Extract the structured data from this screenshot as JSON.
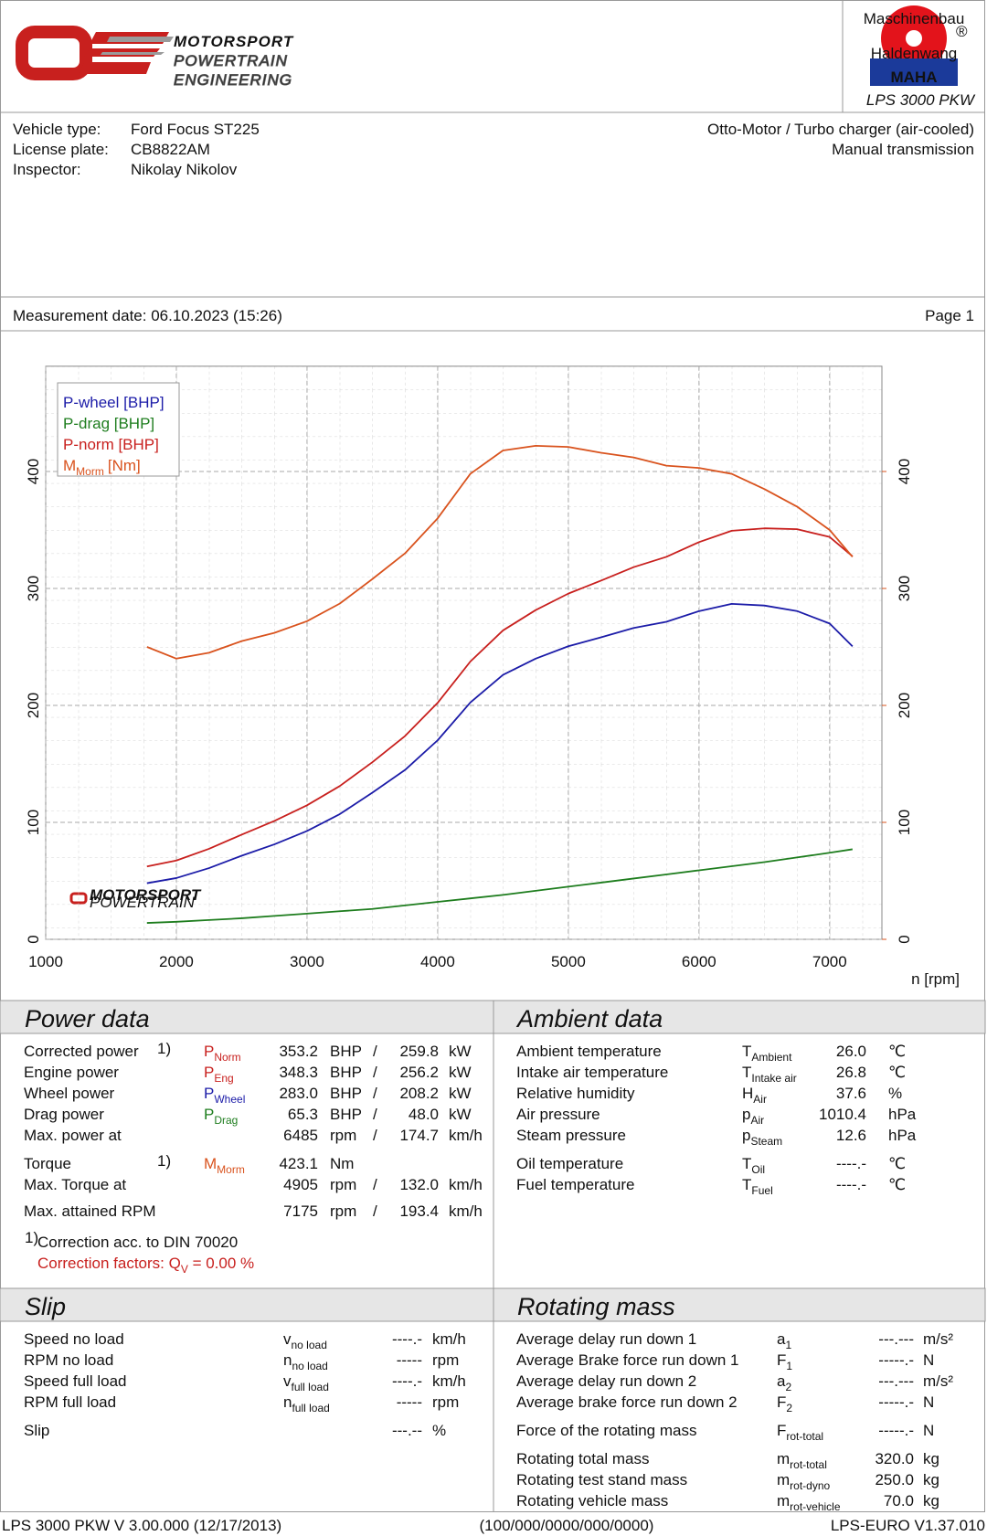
{
  "header": {
    "logo": {
      "line1": "MOTORSPORT",
      "line2": "POWERTRAIN",
      "line3": "ENGINEERING"
    },
    "maha": {
      "arc1": "Maschinenbau",
      "arc2": "Haldenwang",
      "brand": "MAHA",
      "reg": "®",
      "model": "LPS 3000 PKW"
    }
  },
  "vehicle": {
    "rows": [
      {
        "label": "Vehicle type:",
        "value": "Ford Focus ST225"
      },
      {
        "label": "License plate:",
        "value": "CB8822AM"
      },
      {
        "label": "Inspector:",
        "value": "Nikolay Nikolov"
      }
    ],
    "engine": "Otto-Motor / Turbo charger (air-cooled)",
    "transmission": "Manual transmission"
  },
  "measurement": {
    "date": "Measurement date: 06.10.2023 (15:26)",
    "page": "Page 1"
  },
  "chart_data": {
    "type": "line",
    "xlabel": "n [rpm]",
    "x": [
      1775,
      2000,
      2250,
      2500,
      2750,
      3000,
      3250,
      3500,
      3750,
      4000,
      4250,
      4500,
      4750,
      5000,
      5250,
      5500,
      5750,
      6000,
      6250,
      6500,
      6750,
      7000,
      7175
    ],
    "xlim": [
      1000,
      7400
    ],
    "xticks": [
      1000,
      2000,
      3000,
      4000,
      5000,
      6000,
      7000
    ],
    "ylim": [
      0,
      490
    ],
    "yticks": [
      0,
      100,
      200,
      300,
      400
    ],
    "y2lim": [
      0,
      490
    ],
    "y2ticks": [
      0,
      100,
      200,
      300,
      400
    ],
    "y2color": "#d9531e",
    "grid": true,
    "legend": "upper left",
    "series": [
      {
        "name": "P-wheel [BHP]",
        "color": "#1c1ca8",
        "values": [
          48,
          52.4,
          60.9,
          71.5,
          81.2,
          92.6,
          107,
          125.4,
          144.8,
          170.2,
          202.5,
          226.1,
          240,
          250.6,
          258.2,
          266.2,
          271.5,
          280.6,
          286.8,
          285.4,
          280.7,
          270,
          250.5
        ]
      },
      {
        "name": "P-drag [BHP]",
        "color": "#1e7d1e",
        "values": [
          14,
          15,
          16.5,
          18,
          20,
          22,
          24,
          26,
          29,
          32,
          35,
          38,
          41.5,
          45,
          48.5,
          52,
          55.5,
          59,
          62.5,
          66,
          70,
          74,
          77
        ]
      },
      {
        "name": "P-norm [BHP]",
        "color": "#c8201e",
        "values": [
          62.3,
          67.4,
          77.4,
          89.5,
          101.2,
          114.6,
          131,
          151.4,
          173.8,
          202.2,
          237.5,
          264.1,
          281.5,
          295.6,
          306.7,
          318.2,
          327,
          339.6,
          349.3,
          351.4,
          350.7,
          344,
          327.5
        ]
      },
      {
        "name": "M",
        "name_sub": "Morm",
        "name_tail": "[Nm]",
        "axis": "y2",
        "color": "#d9531e",
        "values": [
          250,
          240,
          245,
          255,
          262,
          272,
          287,
          308,
          330,
          360,
          398,
          418,
          422,
          421,
          416,
          412,
          405,
          403,
          398,
          385,
          370,
          350,
          327
        ]
      }
    ]
  },
  "power": {
    "title": "Power data",
    "rows": [
      {
        "label": "Corrected power",
        "note": "1)",
        "sym": "P",
        "sub": "Norm",
        "v1": "353.2",
        "u1": "BHP",
        "sep": "/",
        "v2": "259.8",
        "u2": "kW",
        "color": "#c8201e"
      },
      {
        "label": "Engine power",
        "sym": "P",
        "sub": "Eng",
        "v1": "348.3",
        "u1": "BHP",
        "sep": "/",
        "v2": "256.2",
        "u2": "kW",
        "color": "#c8201e"
      },
      {
        "label": "Wheel power",
        "sym": "P",
        "sub": "Wheel",
        "v1": "283.0",
        "u1": "BHP",
        "sep": "/",
        "v2": "208.2",
        "u2": "kW",
        "color": "#1c1ca8"
      },
      {
        "label": "Drag power",
        "sym": "P",
        "sub": "Drag",
        "v1": "65.3",
        "u1": "BHP",
        "sep": "/",
        "v2": "48.0",
        "u2": "kW",
        "color": "#1e7d1e"
      },
      {
        "label": "Max. power at",
        "v1": "6485",
        "u1": "rpm",
        "sep": "/",
        "v2": "174.7",
        "u2": "km/h",
        "color": "#111111",
        "dim": "#888888"
      },
      {
        "label": "Torque",
        "note": "1)",
        "sym": "M",
        "sub": "Morm",
        "v1": "423.1",
        "u1": "Nm",
        "color": "#d9531e"
      },
      {
        "label": "Max. Torque at",
        "v1": "4905",
        "u1": "rpm",
        "sep": "/",
        "v2": "132.0",
        "u2": "km/h",
        "color": "#111111",
        "dim": "#888888"
      },
      {
        "label": "Max. attained RPM",
        "v1": "7175",
        "u1": "rpm",
        "sep": "/",
        "v2": "193.4",
        "u2": "km/h",
        "color": "#111111",
        "dim": "#888888"
      }
    ],
    "footnote": {
      "mark": "1)",
      "line1": "Correction acc. to DIN 70020",
      "line2_prefix": "Correction factors: Q",
      "line2_sub": "V",
      "line2_suffix": " =   0.00 %"
    }
  },
  "ambient": {
    "title": "Ambient data",
    "rows": [
      {
        "label": "Ambient temperature",
        "sym": "T",
        "sub": "Ambient",
        "v1": "26.0",
        "u1": "℃"
      },
      {
        "label": "Intake air temperature",
        "sym": "T",
        "sub": "Intake air",
        "v1": "26.8",
        "u1": "℃"
      },
      {
        "label": "Relative humidity",
        "sym": "H",
        "sub": "Air",
        "v1": "37.6",
        "u1": "%"
      },
      {
        "label": "Air pressure",
        "sym": "p",
        "sub": "Air",
        "v1": "1010.4",
        "u1": "hPa"
      },
      {
        "label": "Steam pressure",
        "sym": "p",
        "sub": "Steam",
        "v1": "12.6",
        "u1": "hPa"
      },
      {
        "label": "Oil temperature",
        "sym": "T",
        "sub": "Oil",
        "v1": "----.-",
        "u1": "℃"
      },
      {
        "label": "Fuel temperature",
        "sym": "T",
        "sub": "Fuel",
        "v1": "----.-",
        "u1": "℃"
      }
    ]
  },
  "slip": {
    "title": "Slip",
    "rows": [
      {
        "label": "Speed no load",
        "sym": "v",
        "sub": "no load",
        "v1": "----.-",
        "u1": "km/h"
      },
      {
        "label": "RPM no load",
        "sym": "n",
        "sub": "no load",
        "v1": "-----",
        "u1": "rpm"
      },
      {
        "label": "Speed full load",
        "sym": "v",
        "sub": "full load",
        "v1": "----.-",
        "u1": "km/h"
      },
      {
        "label": "RPM full load",
        "sym": "n",
        "sub": "full load",
        "v1": "-----",
        "u1": "rpm"
      },
      {
        "label": "Slip",
        "v1": "---.--",
        "u1": "%"
      }
    ]
  },
  "rotating": {
    "title": "Rotating mass",
    "rows": [
      {
        "label": "Average delay run down 1",
        "sym": "a",
        "sub": "1",
        "v1": "---.---",
        "u1": "m/s²"
      },
      {
        "label": "Average Brake force run down 1",
        "sym": "F",
        "sub": "1",
        "v1": "-----.-",
        "u1": "N"
      },
      {
        "label": "Average delay run down 2",
        "sym": "a",
        "sub": "2",
        "v1": "---.---",
        "u1": "m/s²"
      },
      {
        "label": "Average brake force run down 2",
        "sym": "F",
        "sub": "2",
        "v1": "-----.-",
        "u1": "N"
      },
      {
        "label": "Force of the rotating mass",
        "sym": "F",
        "sub": "rot-total",
        "v1": "-----.-",
        "u1": "N"
      },
      {
        "label": "Rotating total mass",
        "sym": "m",
        "sub": "rot-total",
        "v1": "320.0",
        "u1": "kg"
      },
      {
        "label": "Rotating test stand mass",
        "sym": "m",
        "sub": "rot-dyno",
        "v1": "250.0",
        "u1": "kg"
      },
      {
        "label": "Rotating vehicle mass",
        "sym": "m",
        "sub": "rot-vehicle",
        "v1": "70.0",
        "u1": "kg"
      }
    ]
  },
  "footer": {
    "left": "LPS 3000 PKW V 3.00.000 (12/17/2013)",
    "center": "(100/000/0000/000/0000)",
    "right": "LPS-EURO V1.37.010"
  }
}
